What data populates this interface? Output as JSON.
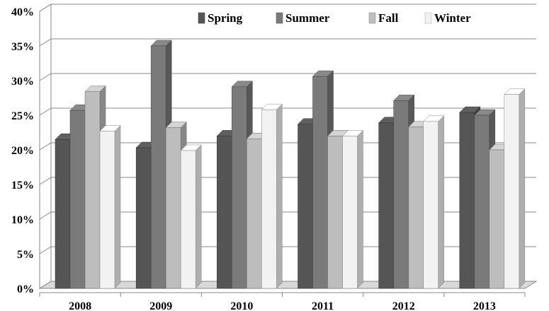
{
  "chart_data": {
    "type": "bar",
    "style": "3d-clustered",
    "categories": [
      "2008",
      "2009",
      "2010",
      "2011",
      "2012",
      "2013"
    ],
    "series": [
      {
        "name": "Spring",
        "color": "#555555",
        "values": [
          21.5,
          20.3,
          22.0,
          23.7,
          23.9,
          25.4
        ]
      },
      {
        "name": "Summer",
        "color": "#7a7a7a",
        "values": [
          25.7,
          35.0,
          29.1,
          30.6,
          27.1,
          25.0
        ]
      },
      {
        "name": "Fall",
        "color": "#bdbdbd",
        "values": [
          28.4,
          23.2,
          21.6,
          22.0,
          23.3,
          20.0
        ]
      },
      {
        "name": "Winter",
        "color": "#f2f2f2",
        "values": [
          22.7,
          19.9,
          25.8,
          22.0,
          24.1,
          28.0
        ]
      }
    ],
    "yticks": [
      "0%",
      "5%",
      "10%",
      "15%",
      "20%",
      "25%",
      "30%",
      "35%",
      "40%"
    ],
    "ylim": [
      0,
      40
    ],
    "grid": true,
    "legend_position": "top-right",
    "title": "",
    "xlabel": "",
    "ylabel": ""
  }
}
